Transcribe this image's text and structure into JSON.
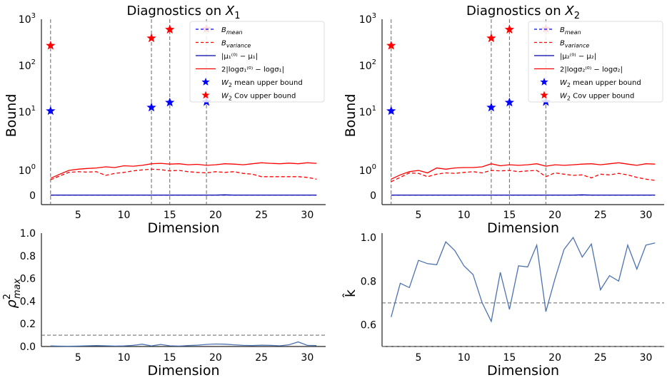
{
  "chart_data": [
    {
      "type": "line",
      "title_prefix": "Diagnostics on ",
      "title_var": "X",
      "title_sub": "1",
      "xlabel": "Dimension",
      "ylabel": "Bound",
      "yscale": "symlog",
      "xlim": [
        1,
        32
      ],
      "xticks": [
        5,
        10,
        15,
        20,
        25,
        30
      ],
      "yticks": [
        {
          "value": 0,
          "label": "0"
        },
        {
          "value": 1,
          "label": "10",
          "exp": "0"
        },
        {
          "value": 10,
          "label": "10",
          "exp": "1"
        },
        {
          "value": 100,
          "label": "10",
          "exp": "2"
        },
        {
          "value": 1000,
          "label": "10",
          "exp": "3"
        }
      ],
      "vlines": [
        2,
        13,
        15,
        19
      ],
      "x": [
        2,
        3,
        4,
        5,
        6,
        7,
        8,
        9,
        10,
        11,
        12,
        13,
        14,
        15,
        16,
        17,
        18,
        19,
        20,
        21,
        22,
        23,
        24,
        25,
        26,
        27,
        28,
        29,
        30,
        31
      ],
      "series": [
        {
          "name": "B_mean",
          "color": "#0000ff",
          "dash": "dashed",
          "values": [
            0.01,
            0.01,
            0.01,
            0.01,
            0.01,
            0.01,
            0.01,
            0.01,
            0.01,
            0.01,
            0.01,
            0.01,
            0.01,
            0.01,
            0.01,
            0.01,
            0.01,
            0.01,
            0.01,
            0.01,
            0.01,
            0.01,
            0.01,
            0.01,
            0.01,
            0.01,
            0.01,
            0.01,
            0.01,
            0.01
          ]
        },
        {
          "name": "B_variance",
          "color": "#ff0000",
          "dash": "dashed",
          "values": [
            0.62,
            0.78,
            0.92,
            0.95,
            0.93,
            0.95,
            0.8,
            0.88,
            0.92,
            0.98,
            1.02,
            1.05,
            1.03,
            0.98,
            1.0,
            0.95,
            0.92,
            0.9,
            0.95,
            0.92,
            0.95,
            0.88,
            0.85,
            0.75,
            0.75,
            0.75,
            0.75,
            0.75,
            0.72,
            0.65
          ]
        },
        {
          "name": "mu_diff",
          "color": "#0000aa",
          "dash": "solid",
          "values": [
            0.01,
            0.01,
            0.01,
            0.01,
            0.01,
            0.01,
            0.01,
            0.01,
            0.01,
            0.01,
            0.01,
            0.01,
            0.01,
            0.01,
            0.01,
            0.01,
            0.01,
            0.01,
            0.01,
            0.02,
            0.01,
            0.01,
            0.01,
            0.01,
            0.01,
            0.01,
            0.01,
            0.01,
            0.01,
            0.01
          ]
        },
        {
          "name": "log_sigma_diff",
          "color": "#ff0000",
          "dash": "solid",
          "values": [
            0.68,
            0.85,
            1.0,
            1.05,
            1.08,
            1.1,
            1.15,
            1.12,
            1.2,
            1.18,
            1.22,
            1.3,
            1.32,
            1.28,
            1.3,
            1.25,
            1.27,
            1.22,
            1.25,
            1.3,
            1.28,
            1.25,
            1.3,
            1.35,
            1.32,
            1.3,
            1.33,
            1.3,
            1.35,
            1.32
          ]
        }
      ],
      "markers": [
        {
          "name": "W2 mean upper bound",
          "color": "#0000ff",
          "points": [
            [
              2,
              10.5
            ],
            [
              13,
              12.5
            ],
            [
              15,
              16
            ],
            [
              19,
              16.5
            ]
          ]
        },
        {
          "name": "W2 Cov upper bound",
          "color": "#ff0000",
          "points": [
            [
              2,
              270
            ],
            [
              13,
              390
            ],
            [
              15,
              600
            ],
            [
              19,
              620
            ]
          ]
        }
      ],
      "legend": {
        "position": "top-right",
        "entries": [
          {
            "kind": "line",
            "color": "#0000ff",
            "dash": "dashed",
            "base": "B",
            "sub": "mean"
          },
          {
            "kind": "line",
            "color": "#ff0000",
            "dash": "dashed",
            "base": "B",
            "sub": "variance"
          },
          {
            "kind": "line",
            "color": "#0000aa",
            "dash": "solid",
            "text": "|μ₁⁽⁰⁾ − μ₁|"
          },
          {
            "kind": "line",
            "color": "#ff0000",
            "dash": "solid",
            "text": "2|logσ₁⁽⁰⁾ − logσ₁|"
          },
          {
            "kind": "star",
            "color": "#0000ff",
            "base": "W",
            "sub": "2",
            "rest": " mean upper bound"
          },
          {
            "kind": "star",
            "color": "#ff0000",
            "base": "W",
            "sub": "2",
            "rest": " Cov upper bound"
          }
        ]
      }
    },
    {
      "type": "line",
      "title_prefix": "Diagnostics on ",
      "title_var": "X",
      "title_sub": "2",
      "xlabel": "Dimension",
      "ylabel": "Bound",
      "yscale": "symlog",
      "xlim": [
        1,
        32
      ],
      "xticks": [
        5,
        10,
        15,
        20,
        25,
        30
      ],
      "yticks": [
        {
          "value": 0,
          "label": "0"
        },
        {
          "value": 1,
          "label": "10",
          "exp": "0"
        },
        {
          "value": 10,
          "label": "10",
          "exp": "1"
        },
        {
          "value": 100,
          "label": "10",
          "exp": "2"
        },
        {
          "value": 1000,
          "label": "10",
          "exp": "3"
        }
      ],
      "vlines": [
        2,
        13,
        15,
        19
      ],
      "x": [
        2,
        3,
        4,
        5,
        6,
        7,
        8,
        9,
        10,
        11,
        12,
        13,
        14,
        15,
        16,
        17,
        18,
        19,
        20,
        21,
        22,
        23,
        24,
        25,
        26,
        27,
        28,
        29,
        30,
        31
      ],
      "series": [
        {
          "name": "B_mean",
          "color": "#0000ff",
          "dash": "dashed",
          "values": [
            0.01,
            0.01,
            0.01,
            0.01,
            0.01,
            0.01,
            0.01,
            0.01,
            0.01,
            0.01,
            0.01,
            0.01,
            0.01,
            0.01,
            0.01,
            0.01,
            0.01,
            0.01,
            0.01,
            0.01,
            0.01,
            0.01,
            0.01,
            0.01,
            0.01,
            0.01,
            0.01,
            0.01,
            0.01,
            0.01
          ]
        },
        {
          "name": "B_variance",
          "color": "#ff0000",
          "dash": "dashed",
          "values": [
            0.55,
            0.72,
            0.9,
            0.88,
            0.75,
            0.85,
            0.9,
            0.88,
            0.92,
            0.95,
            0.9,
            1.0,
            0.98,
            1.0,
            0.95,
            0.98,
            1.0,
            0.75,
            0.9,
            0.85,
            0.8,
            0.82,
            0.7,
            0.85,
            0.82,
            0.88,
            0.82,
            0.72,
            0.65,
            0.6
          ]
        },
        {
          "name": "mu_diff",
          "color": "#0000aa",
          "dash": "solid",
          "values": [
            0.01,
            0.01,
            0.01,
            0.01,
            0.01,
            0.01,
            0.01,
            0.01,
            0.01,
            0.01,
            0.01,
            0.01,
            0.01,
            0.01,
            0.01,
            0.01,
            0.01,
            0.01,
            0.01,
            0.01,
            0.01,
            0.02,
            0.01,
            0.01,
            0.01,
            0.01,
            0.01,
            0.01,
            0.01,
            0.01
          ]
        },
        {
          "name": "log_sigma_diff",
          "color": "#ff0000",
          "dash": "solid",
          "values": [
            0.65,
            0.82,
            0.95,
            1.0,
            0.9,
            1.1,
            1.05,
            1.1,
            1.12,
            1.12,
            1.15,
            1.3,
            1.2,
            1.25,
            1.22,
            1.25,
            1.3,
            1.18,
            1.25,
            1.22,
            1.25,
            1.28,
            1.3,
            1.25,
            1.3,
            1.35,
            1.28,
            1.22,
            1.3,
            1.28
          ]
        }
      ],
      "markers": [
        {
          "name": "W2 mean upper bound",
          "color": "#0000ff",
          "points": [
            [
              2,
              10.5
            ],
            [
              13,
              12.5
            ],
            [
              15,
              16
            ],
            [
              19,
              16.5
            ]
          ]
        },
        {
          "name": "W2 Cov upper bound",
          "color": "#ff0000",
          "points": [
            [
              2,
              270
            ],
            [
              13,
              390
            ],
            [
              15,
              600
            ],
            [
              19,
              620
            ]
          ]
        }
      ],
      "legend": {
        "position": "top-right",
        "entries": [
          {
            "kind": "line",
            "color": "#0000ff",
            "dash": "dashed",
            "base": "B",
            "sub": "mean"
          },
          {
            "kind": "line",
            "color": "#ff0000",
            "dash": "dashed",
            "base": "B",
            "sub": "variance"
          },
          {
            "kind": "line",
            "color": "#0000aa",
            "dash": "solid",
            "text": "|μ₂⁽⁰⁾ − μ₂|"
          },
          {
            "kind": "line",
            "color": "#ff0000",
            "dash": "solid",
            "text": "2|logσ₂⁽⁰⁾ − logσ₂|"
          },
          {
            "kind": "star",
            "color": "#0000ff",
            "base": "W",
            "sub": "2",
            "rest": " mean upper bound"
          },
          {
            "kind": "star",
            "color": "#ff0000",
            "base": "W",
            "sub": "2",
            "rest": " Cov upper bound"
          }
        ]
      }
    },
    {
      "type": "line",
      "xlabel": "Dimension",
      "ylabel_base": "ρ",
      "ylabel_sup": "2",
      "ylabel_sub": "max",
      "xlim": [
        1,
        32
      ],
      "ylim": [
        0,
        1.0
      ],
      "xticks": [
        5,
        10,
        15,
        20,
        25,
        30
      ],
      "yticks": [
        {
          "value": 0.0,
          "label": "0.0"
        },
        {
          "value": 0.2,
          "label": "0.2"
        },
        {
          "value": 0.4,
          "label": "0.4"
        },
        {
          "value": 0.6,
          "label": "0.6"
        },
        {
          "value": 0.8,
          "label": "0.8"
        },
        {
          "value": 1.0,
          "label": "1.0"
        }
      ],
      "hlines": [
        0.1
      ],
      "x": [
        2,
        3,
        4,
        5,
        6,
        7,
        8,
        9,
        10,
        11,
        12,
        13,
        14,
        15,
        16,
        17,
        18,
        19,
        20,
        21,
        22,
        23,
        24,
        25,
        26,
        27,
        28,
        29,
        30,
        31
      ],
      "series": [
        {
          "color": "#4c72b0",
          "dash": "solid",
          "values": [
            0.005,
            0.003,
            0.002,
            0.004,
            0.006,
            0.008,
            0.006,
            0.004,
            0.005,
            0.01,
            0.02,
            0.005,
            0.018,
            0.006,
            0.004,
            0.008,
            0.012,
            0.018,
            0.022,
            0.02,
            0.015,
            0.01,
            0.008,
            0.012,
            0.01,
            0.006,
            0.015,
            0.04,
            0.01,
            0.008
          ]
        }
      ]
    },
    {
      "type": "line",
      "xlabel": "Dimension",
      "ylabel": "k̂",
      "xlim": [
        1,
        32
      ],
      "ylim": [
        0.5,
        1.02
      ],
      "xticks": [
        5,
        10,
        15,
        20,
        25,
        30
      ],
      "yticks": [
        {
          "value": 0.6,
          "label": "0.6"
        },
        {
          "value": 0.8,
          "label": "0.8"
        },
        {
          "value": 1.0,
          "label": "1.0"
        }
      ],
      "hlines": [
        0.5,
        0.7
      ],
      "x": [
        2,
        3,
        4,
        5,
        6,
        7,
        8,
        9,
        10,
        11,
        12,
        13,
        14,
        15,
        16,
        17,
        18,
        19,
        20,
        21,
        22,
        23,
        24,
        25,
        26,
        27,
        28,
        29,
        30,
        31
      ],
      "series": [
        {
          "color": "#4c72b0",
          "dash": "solid",
          "values": [
            0.635,
            0.79,
            0.77,
            0.895,
            0.88,
            0.875,
            0.98,
            0.94,
            0.87,
            0.83,
            0.7,
            0.615,
            0.84,
            0.67,
            0.87,
            0.865,
            0.965,
            0.66,
            0.81,
            0.945,
            1.0,
            0.91,
            0.97,
            0.76,
            0.825,
            0.8,
            0.965,
            0.855,
            0.965,
            0.975
          ]
        }
      ]
    }
  ]
}
